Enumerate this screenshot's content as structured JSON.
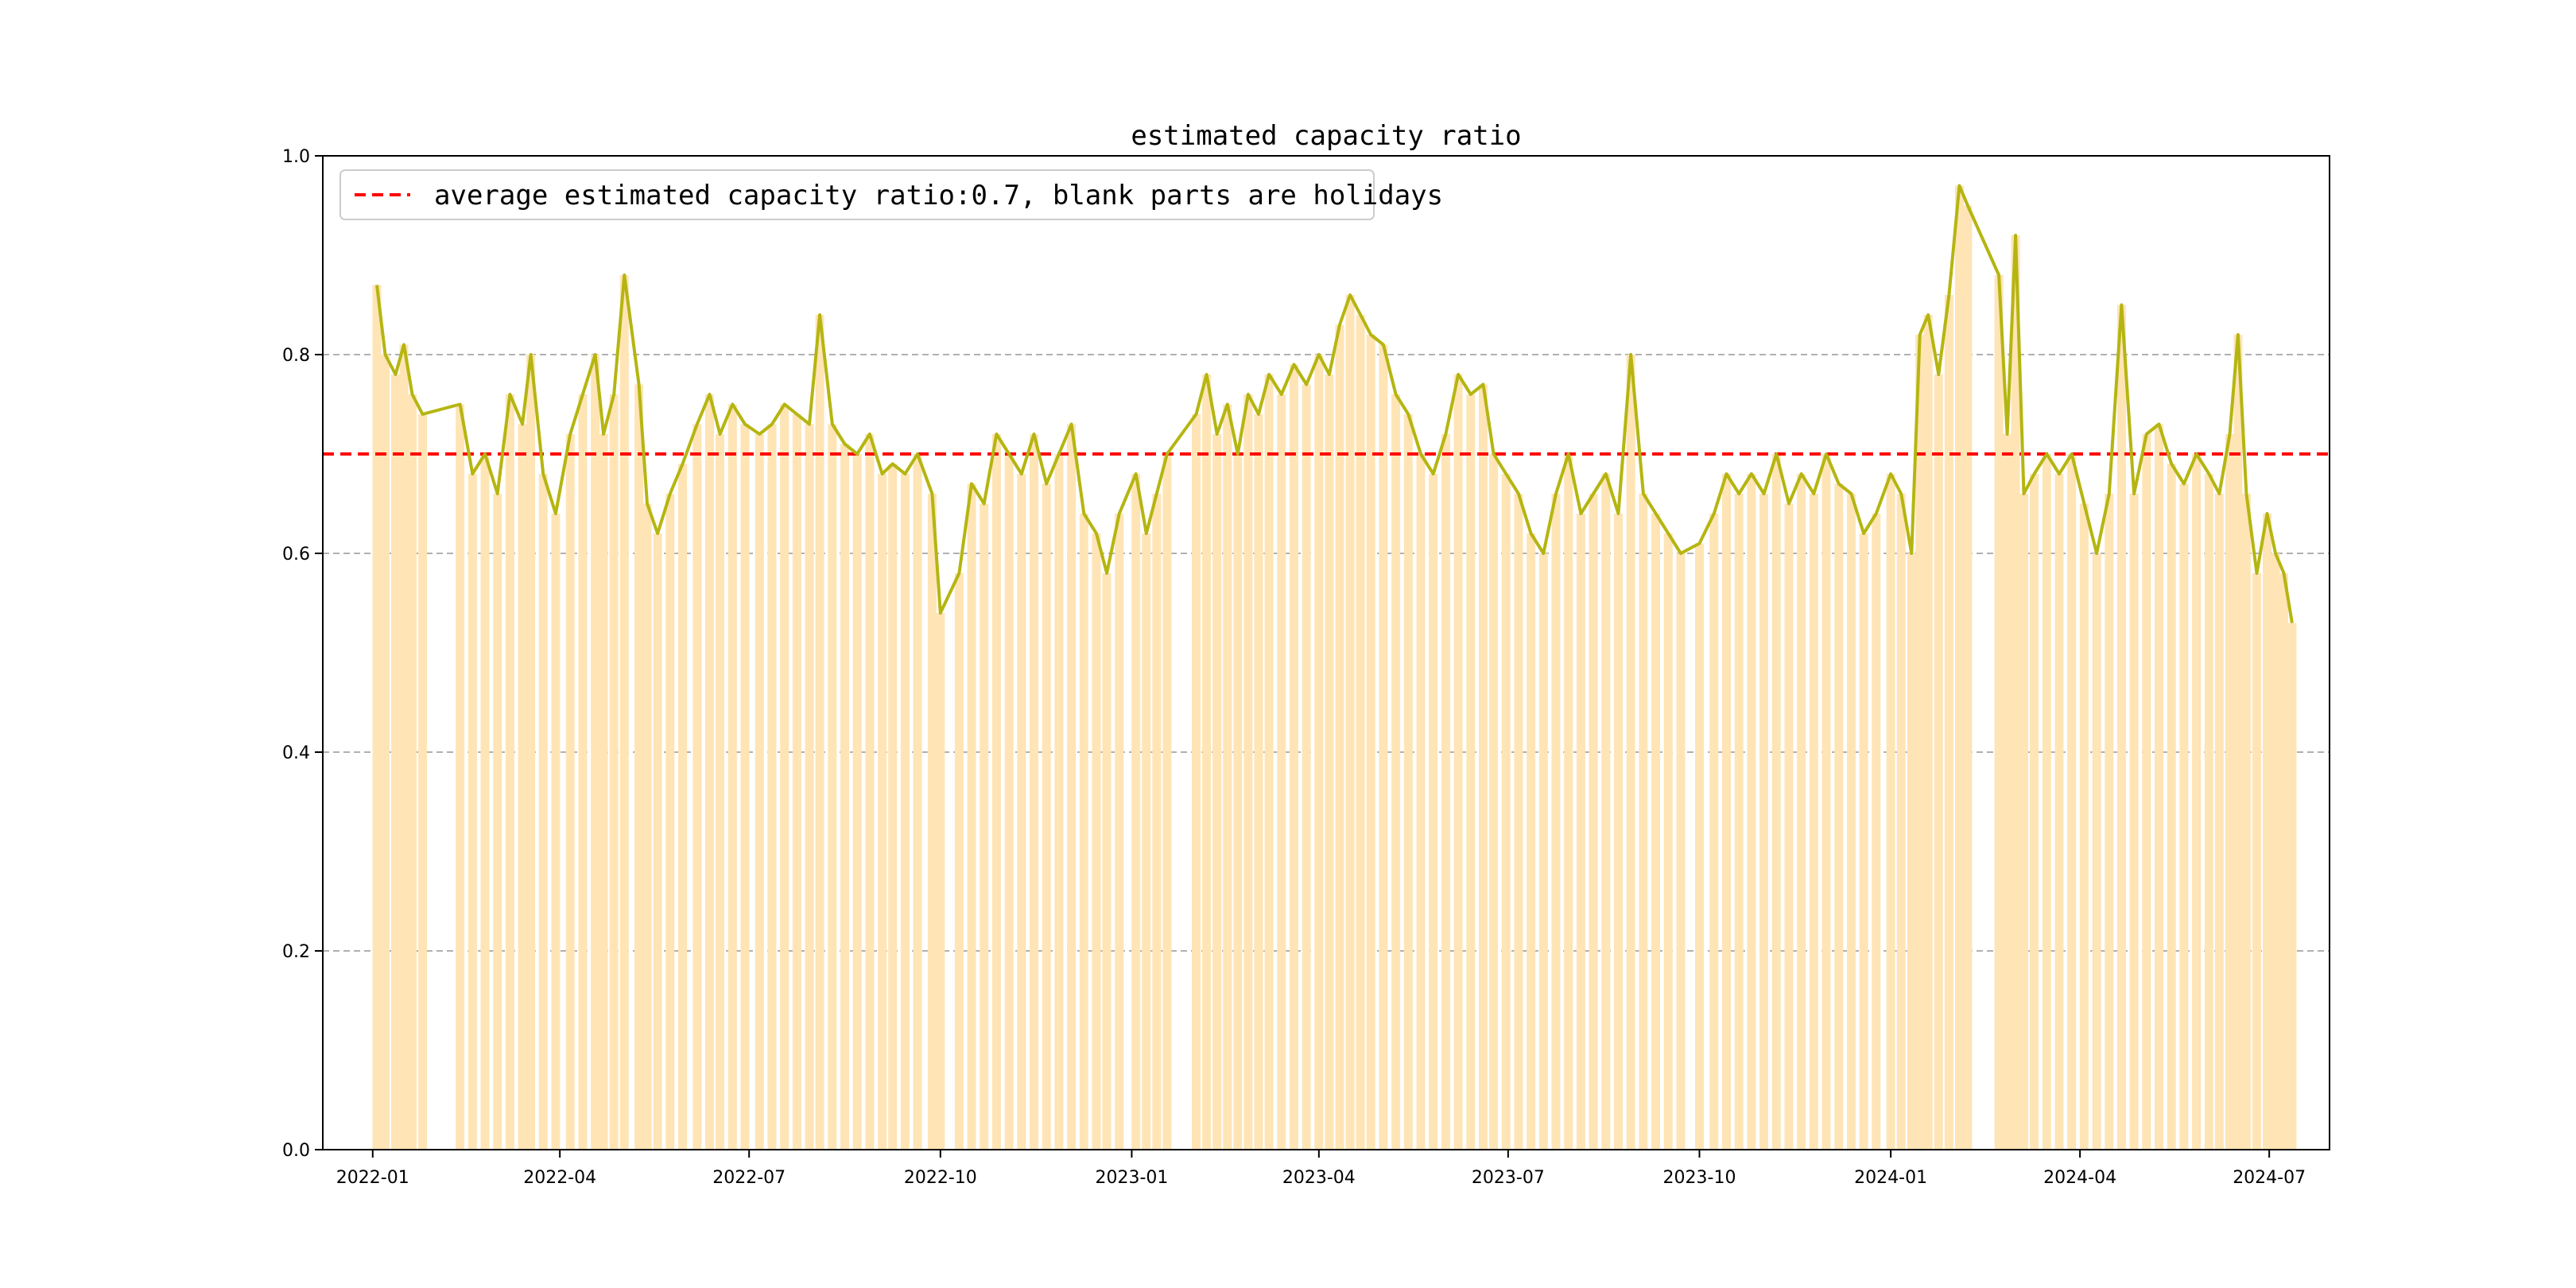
{
  "chart_data": {
    "type": "bar",
    "title": "estimated capacity ratio",
    "xlabel": "",
    "ylabel": "",
    "ylim": [
      0.0,
      1.0
    ],
    "y_ticks": [
      "0.0",
      "0.2",
      "0.4",
      "0.6",
      "0.8",
      "1.0"
    ],
    "y_grid": true,
    "x_range": [
      "2021-12-08",
      "2024-07-30"
    ],
    "x_ticks": [
      "2022-01",
      "2022-04",
      "2022-07",
      "2022-10",
      "2023-01",
      "2023-04",
      "2023-07",
      "2023-10",
      "2024-01",
      "2024-04",
      "2024-07"
    ],
    "x_tick_dates": [
      "2022-01-01",
      "2022-04-01",
      "2022-07-01",
      "2022-10-01",
      "2023-01-01",
      "2023-04-01",
      "2023-07-01",
      "2023-10-01",
      "2024-01-01",
      "2024-04-01",
      "2024-07-01"
    ],
    "average": 0.7,
    "legend": {
      "label": "average estimated capacity ratio:0.7, blank parts are holidays",
      "placement": "top-left"
    },
    "colors": {
      "bars": "#ffe4b5",
      "line": "#b5b511",
      "average": "#ff0000",
      "grid": "#b0b0b0"
    },
    "series": [
      {
        "name": "estimated capacity ratio",
        "kind": "line+bar",
        "points": [
          [
            "2022-01-03",
            0.87
          ],
          [
            "2022-01-07",
            0.8
          ],
          [
            "2022-01-12",
            0.78
          ],
          [
            "2022-01-16",
            0.81
          ],
          [
            "2022-01-20",
            0.76
          ],
          [
            "2022-01-25",
            0.74
          ],
          [
            "2022-02-12",
            0.75
          ],
          [
            "2022-02-18",
            0.68
          ],
          [
            "2022-02-24",
            0.7
          ],
          [
            "2022-03-02",
            0.66
          ],
          [
            "2022-03-08",
            0.76
          ],
          [
            "2022-03-14",
            0.73
          ],
          [
            "2022-03-18",
            0.8
          ],
          [
            "2022-03-24",
            0.68
          ],
          [
            "2022-03-30",
            0.64
          ],
          [
            "2022-04-06",
            0.72
          ],
          [
            "2022-04-12",
            0.76
          ],
          [
            "2022-04-18",
            0.8
          ],
          [
            "2022-04-22",
            0.72
          ],
          [
            "2022-04-27",
            0.76
          ],
          [
            "2022-05-02",
            0.88
          ],
          [
            "2022-05-09",
            0.77
          ],
          [
            "2022-05-13",
            0.65
          ],
          [
            "2022-05-18",
            0.62
          ],
          [
            "2022-05-24",
            0.66
          ],
          [
            "2022-05-30",
            0.69
          ],
          [
            "2022-06-06",
            0.73
          ],
          [
            "2022-06-12",
            0.76
          ],
          [
            "2022-06-17",
            0.72
          ],
          [
            "2022-06-23",
            0.75
          ],
          [
            "2022-06-29",
            0.73
          ],
          [
            "2022-07-06",
            0.72
          ],
          [
            "2022-07-12",
            0.73
          ],
          [
            "2022-07-18",
            0.75
          ],
          [
            "2022-07-24",
            0.74
          ],
          [
            "2022-07-30",
            0.73
          ],
          [
            "2022-08-04",
            0.84
          ],
          [
            "2022-08-10",
            0.73
          ],
          [
            "2022-08-16",
            0.71
          ],
          [
            "2022-08-22",
            0.7
          ],
          [
            "2022-08-28",
            0.72
          ],
          [
            "2022-09-03",
            0.68
          ],
          [
            "2022-09-08",
            0.69
          ],
          [
            "2022-09-14",
            0.68
          ],
          [
            "2022-09-20",
            0.7
          ],
          [
            "2022-09-27",
            0.66
          ],
          [
            "2022-10-01",
            0.54
          ],
          [
            "2022-10-10",
            0.58
          ],
          [
            "2022-10-16",
            0.67
          ],
          [
            "2022-10-22",
            0.65
          ],
          [
            "2022-10-28",
            0.72
          ],
          [
            "2022-11-03",
            0.7
          ],
          [
            "2022-11-09",
            0.68
          ],
          [
            "2022-11-15",
            0.72
          ],
          [
            "2022-11-21",
            0.67
          ],
          [
            "2022-11-27",
            0.7
          ],
          [
            "2022-12-03",
            0.73
          ],
          [
            "2022-12-09",
            0.64
          ],
          [
            "2022-12-15",
            0.62
          ],
          [
            "2022-12-20",
            0.58
          ],
          [
            "2022-12-26",
            0.64
          ],
          [
            "2023-01-03",
            0.68
          ],
          [
            "2023-01-08",
            0.62
          ],
          [
            "2023-01-13",
            0.66
          ],
          [
            "2023-01-18",
            0.7
          ],
          [
            "2023-02-01",
            0.74
          ],
          [
            "2023-02-06",
            0.78
          ],
          [
            "2023-02-11",
            0.72
          ],
          [
            "2023-02-16",
            0.75
          ],
          [
            "2023-02-21",
            0.7
          ],
          [
            "2023-02-26",
            0.76
          ],
          [
            "2023-03-03",
            0.74
          ],
          [
            "2023-03-08",
            0.78
          ],
          [
            "2023-03-14",
            0.76
          ],
          [
            "2023-03-20",
            0.79
          ],
          [
            "2023-03-26",
            0.77
          ],
          [
            "2023-04-01",
            0.8
          ],
          [
            "2023-04-06",
            0.78
          ],
          [
            "2023-04-11",
            0.83
          ],
          [
            "2023-04-16",
            0.86
          ],
          [
            "2023-04-21",
            0.84
          ],
          [
            "2023-04-26",
            0.82
          ],
          [
            "2023-05-02",
            0.81
          ],
          [
            "2023-05-08",
            0.76
          ],
          [
            "2023-05-14",
            0.74
          ],
          [
            "2023-05-20",
            0.7
          ],
          [
            "2023-05-26",
            0.68
          ],
          [
            "2023-06-01",
            0.72
          ],
          [
            "2023-06-07",
            0.78
          ],
          [
            "2023-06-13",
            0.76
          ],
          [
            "2023-06-19",
            0.77
          ],
          [
            "2023-06-24",
            0.7
          ],
          [
            "2023-06-30",
            0.68
          ],
          [
            "2023-07-06",
            0.66
          ],
          [
            "2023-07-12",
            0.62
          ],
          [
            "2023-07-18",
            0.6
          ],
          [
            "2023-07-24",
            0.66
          ],
          [
            "2023-07-30",
            0.7
          ],
          [
            "2023-08-05",
            0.64
          ],
          [
            "2023-08-11",
            0.66
          ],
          [
            "2023-08-17",
            0.68
          ],
          [
            "2023-08-23",
            0.64
          ],
          [
            "2023-08-29",
            0.8
          ],
          [
            "2023-09-04",
            0.66
          ],
          [
            "2023-09-10",
            0.64
          ],
          [
            "2023-09-16",
            0.62
          ],
          [
            "2023-09-22",
            0.6
          ],
          [
            "2023-10-01",
            0.61
          ],
          [
            "2023-10-08",
            0.64
          ],
          [
            "2023-10-14",
            0.68
          ],
          [
            "2023-10-20",
            0.66
          ],
          [
            "2023-10-26",
            0.68
          ],
          [
            "2023-11-01",
            0.66
          ],
          [
            "2023-11-07",
            0.7
          ],
          [
            "2023-11-13",
            0.65
          ],
          [
            "2023-11-19",
            0.68
          ],
          [
            "2023-11-25",
            0.66
          ],
          [
            "2023-12-01",
            0.7
          ],
          [
            "2023-12-07",
            0.67
          ],
          [
            "2023-12-13",
            0.66
          ],
          [
            "2023-12-19",
            0.62
          ],
          [
            "2023-12-25",
            0.64
          ],
          [
            "2024-01-01",
            0.68
          ],
          [
            "2024-01-06",
            0.66
          ],
          [
            "2024-01-11",
            0.6
          ],
          [
            "2024-01-15",
            0.82
          ],
          [
            "2024-01-19",
            0.84
          ],
          [
            "2024-01-24",
            0.78
          ],
          [
            "2024-01-29",
            0.86
          ],
          [
            "2024-02-03",
            0.97
          ],
          [
            "2024-02-07",
            0.95
          ],
          [
            "2024-02-22",
            0.88
          ],
          [
            "2024-02-26",
            0.72
          ],
          [
            "2024-03-01",
            0.92
          ],
          [
            "2024-03-05",
            0.66
          ],
          [
            "2024-03-10",
            0.68
          ],
          [
            "2024-03-16",
            0.7
          ],
          [
            "2024-03-22",
            0.68
          ],
          [
            "2024-03-28",
            0.7
          ],
          [
            "2024-04-03",
            0.65
          ],
          [
            "2024-04-09",
            0.6
          ],
          [
            "2024-04-15",
            0.66
          ],
          [
            "2024-04-21",
            0.85
          ],
          [
            "2024-04-27",
            0.66
          ],
          [
            "2024-05-03",
            0.72
          ],
          [
            "2024-05-09",
            0.73
          ],
          [
            "2024-05-15",
            0.69
          ],
          [
            "2024-05-21",
            0.67
          ],
          [
            "2024-05-27",
            0.7
          ],
          [
            "2024-06-02",
            0.68
          ],
          [
            "2024-06-07",
            0.66
          ],
          [
            "2024-06-12",
            0.72
          ],
          [
            "2024-06-16",
            0.82
          ],
          [
            "2024-06-20",
            0.66
          ],
          [
            "2024-06-25",
            0.58
          ],
          [
            "2024-06-30",
            0.64
          ],
          [
            "2024-07-04",
            0.6
          ],
          [
            "2024-07-08",
            0.58
          ],
          [
            "2024-07-12",
            0.53
          ]
        ]
      }
    ]
  }
}
